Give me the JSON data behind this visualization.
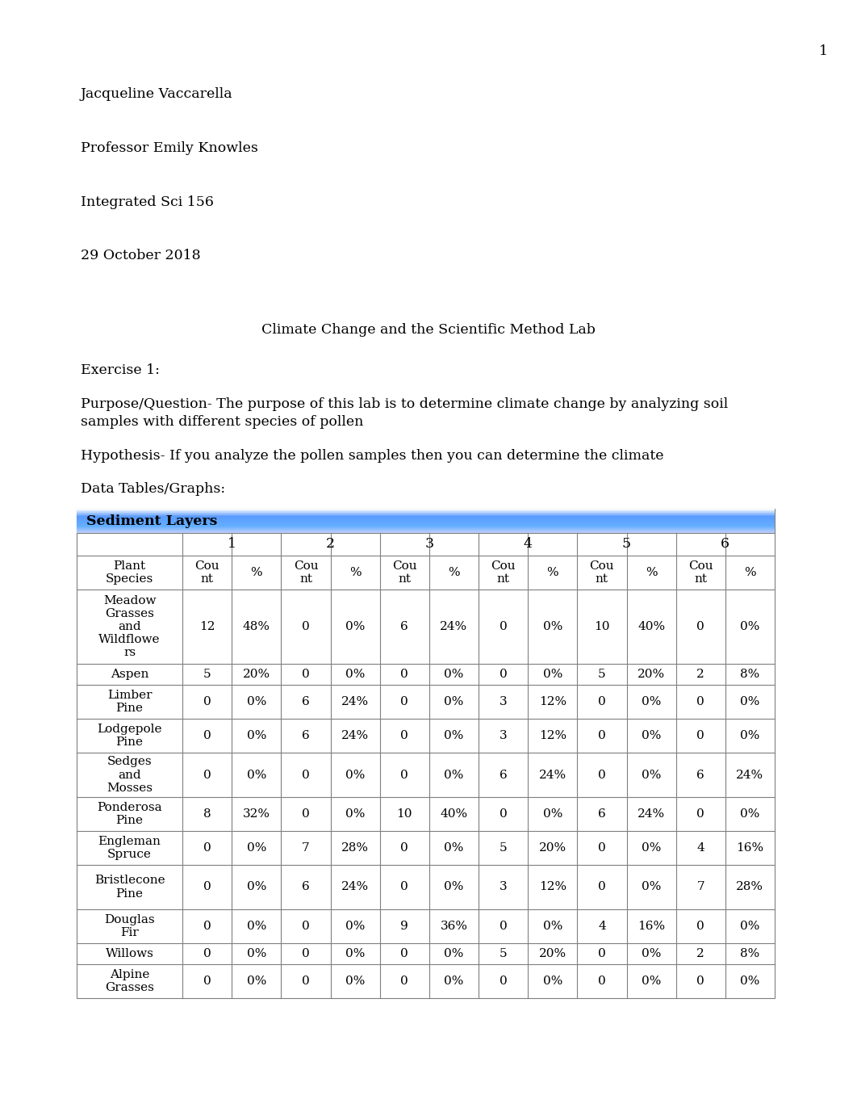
{
  "page_number": "1",
  "header_lines": [
    "Jacqueline Vaccarella",
    "Professor Emily Knowles",
    "Integrated Sci 156",
    "29 October 2018"
  ],
  "title": "Climate Change and the Scientific Method Lab",
  "exercise": "Exercise 1:",
  "purpose_line1": "Purpose/Question- The purpose of this lab is to determine climate change by analyzing soil",
  "purpose_line2": "samples with different species of pollen",
  "hypothesis": "Hypothesis- If you analyze the pollen samples then you can determine the climate",
  "data_tables_label": "Data Tables/Graphs:",
  "table_title": "Sediment Layers",
  "table_header_bg": "#5b9bd5",
  "sub_headers": [
    "Plant\nSpecies",
    "Cou\nnt",
    "%",
    "Cou\nnt",
    "%",
    "Cou\nnt",
    "%",
    "Cou\nnt",
    "%",
    "Cou\nnt",
    "%",
    "Cou\nnt",
    "%"
  ],
  "layer_numbers": [
    "1",
    "2",
    "3",
    "4",
    "5",
    "6"
  ],
  "rows": [
    [
      "Meadow\nGrasses\nand\nWildflowe\nrs",
      "12",
      "48%",
      "0",
      "0%",
      "6",
      "24%",
      "0",
      "0%",
      "10",
      "40%",
      "0",
      "0%"
    ],
    [
      "Aspen",
      "5",
      "20%",
      "0",
      "0%",
      "0",
      "0%",
      "0",
      "0%",
      "5",
      "20%",
      "2",
      "8%"
    ],
    [
      "Limber\nPine",
      "0",
      "0%",
      "6",
      "24%",
      "0",
      "0%",
      "3",
      "12%",
      "0",
      "0%",
      "0",
      "0%"
    ],
    [
      "Lodgepole\nPine",
      "0",
      "0%",
      "6",
      "24%",
      "0",
      "0%",
      "3",
      "12%",
      "0",
      "0%",
      "0",
      "0%"
    ],
    [
      "Sedges\nand\nMosses",
      "0",
      "0%",
      "0",
      "0%",
      "0",
      "0%",
      "6",
      "24%",
      "0",
      "0%",
      "6",
      "24%"
    ],
    [
      "Ponderosa\nPine",
      "8",
      "32%",
      "0",
      "0%",
      "10",
      "40%",
      "0",
      "0%",
      "6",
      "24%",
      "0",
      "0%"
    ],
    [
      "Engleman\nSpruce",
      "0",
      "0%",
      "7",
      "28%",
      "0",
      "0%",
      "5",
      "20%",
      "0",
      "0%",
      "4",
      "16%"
    ],
    [
      "Bristlecone\nPine",
      "0",
      "0%",
      "6",
      "24%",
      "0",
      "0%",
      "3",
      "12%",
      "0",
      "0%",
      "7",
      "28%"
    ],
    [
      "Douglas\nFir",
      "0",
      "0%",
      "0",
      "0%",
      "9",
      "36%",
      "0",
      "0%",
      "4",
      "16%",
      "0",
      "0%"
    ],
    [
      "Willows",
      "0",
      "0%",
      "0",
      "0%",
      "0",
      "0%",
      "5",
      "20%",
      "0",
      "0%",
      "2",
      "8%"
    ],
    [
      "Alpine\nGrasses",
      "0",
      "0%",
      "0",
      "0%",
      "0",
      "0%",
      "0",
      "0%",
      "0",
      "0%",
      "0",
      "0%"
    ]
  ]
}
